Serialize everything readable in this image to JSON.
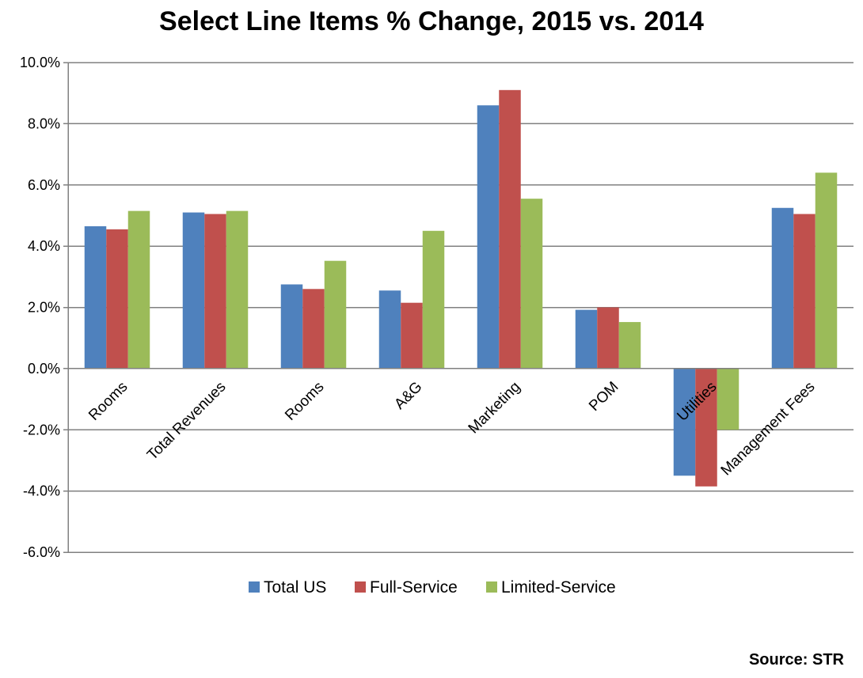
{
  "chart_data": {
    "type": "bar",
    "title": "Select Line Items % Change, 2015 vs. 2014",
    "categories": [
      "Rooms",
      "Total Revenues",
      "Rooms",
      "A&G",
      "Marketing",
      "POM",
      "Utilities",
      "Management Fees"
    ],
    "series": [
      {
        "name": "Total US",
        "color": "#4F81BD",
        "values": [
          4.65,
          5.1,
          2.75,
          2.55,
          8.6,
          1.92,
          -3.5,
          5.25
        ]
      },
      {
        "name": "Full-Service",
        "color": "#C0504D",
        "values": [
          4.55,
          5.05,
          2.6,
          2.15,
          9.1,
          2.0,
          -3.85,
          5.05
        ]
      },
      {
        "name": "Limited-Service",
        "color": "#9BBB59",
        "values": [
          5.15,
          5.15,
          3.52,
          4.5,
          5.55,
          1.52,
          -2.0,
          6.4
        ]
      }
    ],
    "ylim": [
      -6,
      10
    ],
    "yticks": [
      -6,
      -4,
      -2,
      0,
      2,
      4,
      6,
      8,
      10
    ],
    "ytick_labels": [
      "-6.0%",
      "-4.0%",
      "-2.0%",
      "0.0%",
      "2.0%",
      "4.0%",
      "6.0%",
      "8.0%",
      "10.0%"
    ],
    "grid": true,
    "legend_position": "bottom",
    "xlabel": "",
    "ylabel": ""
  },
  "footer": {
    "source": "Source: STR"
  }
}
